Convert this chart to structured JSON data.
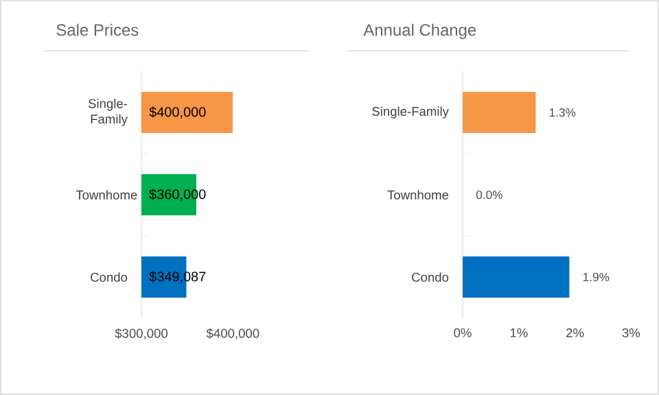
{
  "chart_data": [
    {
      "type": "bar",
      "orientation": "horizontal",
      "title": "Sale Prices",
      "categories": [
        "Single-Family",
        "Townhome",
        "Condo"
      ],
      "values": [
        400000,
        360000,
        349087
      ],
      "colors": [
        "#f79646",
        "#00b050",
        "#0070c0"
      ],
      "value_labels": [
        "$400,000",
        "$360,000",
        "$349,087"
      ],
      "xlim": [
        300000,
        400000
      ],
      "xticks": [
        {
          "value": 300000,
          "label": "$300,000"
        },
        {
          "value": 400000,
          "label": "$400,000"
        }
      ]
    },
    {
      "type": "bar",
      "orientation": "horizontal",
      "title": "Annual Change",
      "categories": [
        "Single-Family",
        "Townhome",
        "Condo"
      ],
      "values": [
        1.3,
        0.0,
        1.9
      ],
      "colors": [
        "#f79646",
        "#00b050",
        "#0070c0"
      ],
      "value_labels": [
        "1.3%",
        "0.0%",
        "1.9%"
      ],
      "xlim": [
        0,
        3
      ],
      "xticks": [
        {
          "value": 0,
          "label": "0%"
        },
        {
          "value": 1,
          "label": "1%"
        },
        {
          "value": 2,
          "label": "2%"
        },
        {
          "value": 3,
          "label": "3%"
        }
      ]
    }
  ]
}
